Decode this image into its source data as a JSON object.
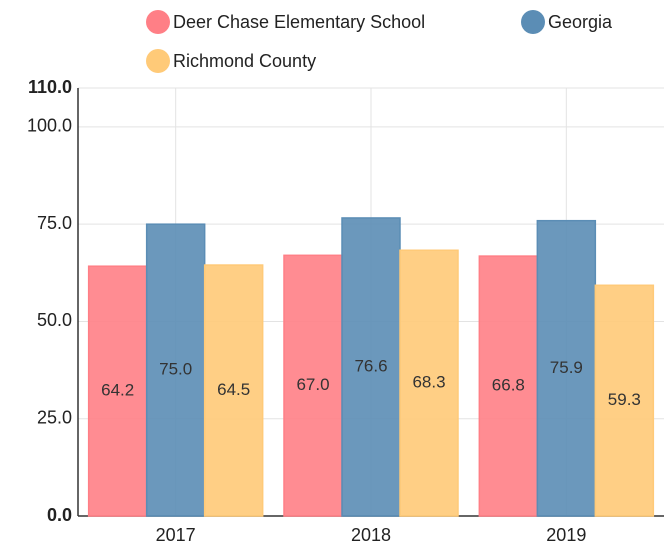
{
  "chart_data": {
    "type": "bar",
    "categories": [
      "2017",
      "2018",
      "2019"
    ],
    "series": [
      {
        "name": "Deer Chase Elementary School",
        "color": "#ff7f86",
        "values": [
          64.2,
          67.0,
          66.8
        ],
        "value_labels": [
          "64.2",
          "67.0",
          "66.8"
        ]
      },
      {
        "name": "Georgia",
        "color": "#5b8db5",
        "values": [
          75.0,
          76.6,
          75.9
        ],
        "value_labels": [
          "75.0",
          "76.6",
          "75.9"
        ]
      },
      {
        "name": "Richmond County",
        "color": "#ffca78",
        "values": [
          64.5,
          68.3,
          59.3
        ],
        "value_labels": [
          "64.5",
          "68.3",
          "59.3"
        ]
      }
    ],
    "ylim": [
      0,
      110
    ],
    "yticks": [
      {
        "value": 0,
        "label": "0.0"
      },
      {
        "value": 25,
        "label": "25.0"
      },
      {
        "value": 50,
        "label": "50.0"
      },
      {
        "value": 75,
        "label": "75.0"
      },
      {
        "value": 100,
        "label": "100.0"
      },
      {
        "value": 110,
        "label": "110.0"
      }
    ],
    "grid": true
  }
}
